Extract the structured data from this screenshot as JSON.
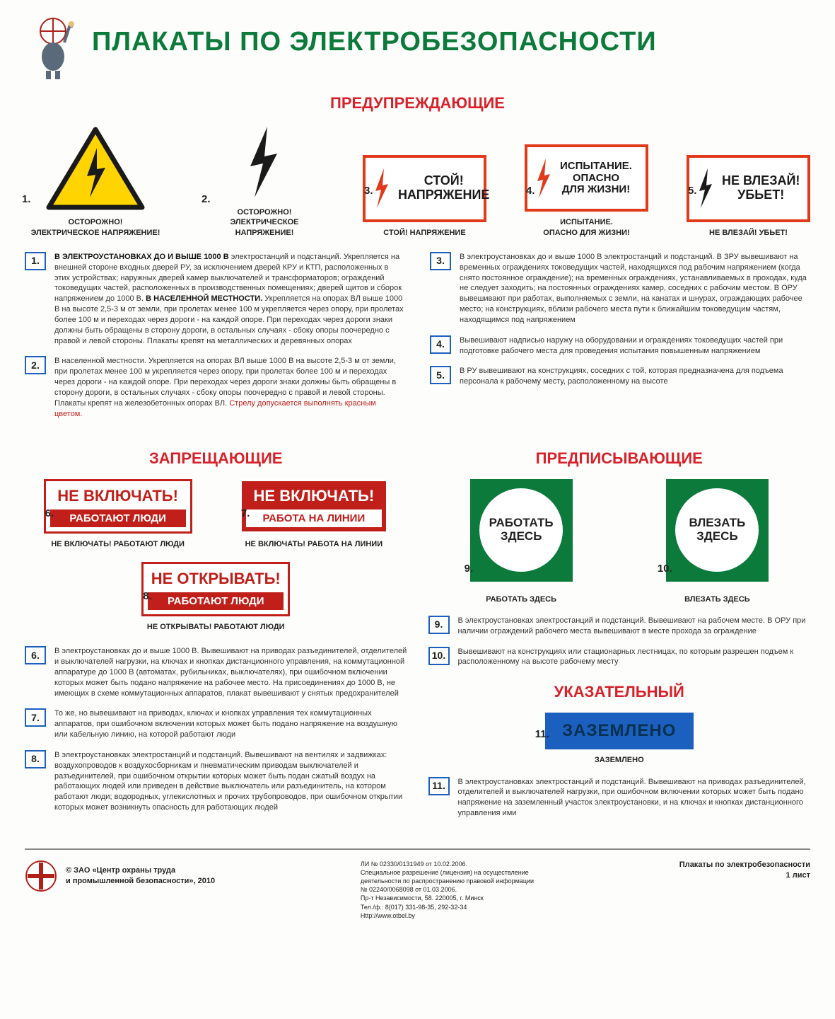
{
  "colors": {
    "green": "#0b7a3a",
    "red": "#d8212a",
    "red_sign": "#c02019",
    "orange_border": "#e13a1a",
    "blue": "#1b5fbf",
    "yellow": "#ffd400",
    "black": "#1a1a1a"
  },
  "title": "ПЛАКАТЫ ПО ЭЛЕКТРОБЕЗОПАСНОСТИ",
  "sections": {
    "warning": "ПРЕДУПРЕЖДАЮЩИЕ",
    "prohibit": "ЗАПРЕЩАЮЩИЕ",
    "prescribe": "ПРЕДПИСЫВАЮЩИЕ",
    "indicate": "УКАЗАТЕЛЬНЫЙ"
  },
  "warning_signs": [
    {
      "n": "1.",
      "caption": "ОСТОРОЖНО!\nЭЛЕКТРИЧЕСКОЕ НАПРЯЖЕНИЕ!"
    },
    {
      "n": "2.",
      "caption": "ОСТОРОЖНО!\nЭЛЕКТРИЧЕСКОЕ НАПРЯЖЕНИЕ!"
    },
    {
      "n": "3.",
      "sign_text": "СТОЙ!\nНАПРЯЖЕНИЕ",
      "caption": "СТОЙ! НАПРЯЖЕНИЕ"
    },
    {
      "n": "4.",
      "sign_text": "ИСПЫТАНИЕ.\nОПАСНО\nДЛЯ ЖИЗНИ!",
      "caption": "ИСПЫТАНИЕ.\nОПАСНО ДЛЯ ЖИЗНИ!"
    },
    {
      "n": "5.",
      "sign_text": "НЕ ВЛЕЗАЙ!\nУБЬЕТ!",
      "caption": "НЕ ВЛЕЗАЙ! УБЬЕТ!"
    }
  ],
  "warning_notes_left": [
    {
      "n": "1.",
      "text": "<b>В ЭЛЕКТРОУСТАНОВКАХ ДО И ВЫШЕ 1000 В</b> электростанций и подстанций. Укрепляется на внешней стороне входных дверей РУ, за исключением дверей КРУ и КТП, расположенных в этих устройствах; наружных дверей камер выключателей и трансформаторов; ограждений токоведущих частей, расположенных в производственных помещениях; дверей щитов и сборок напряжением до 1000 В. <b>В НАСЕЛЕННОЙ МЕСТНОСТИ.</b> Укрепляется на опорах ВЛ выше 1000 В на высоте 2,5-3 м от земли, при пролетах менее 100 м укрепляется через опору, при пролетах более 100 м и переходах через дороги - на каждой опоре. При переходах через дороги знаки должны быть обращены в сторону дороги, в остальных случаях - сбоку опоры поочередно с правой и левой стороны. Плакаты крепят на металлических и деревянных опорах"
    },
    {
      "n": "2.",
      "text": "В населенной местности. Укрепляется на опорах ВЛ выше 1000 В на высоте 2,5-3 м от земли, при пролетах менее 100 м укрепляется через опору, при пролетах более 100 м и переходах через дороги - на каждой опоре. При переходах через дороги знаки должны быть обращены в сторону дороги, в остальных случаях - сбоку опоры поочередно с правой и левой стороны. Плакаты крепят на железобетонных опорах ВЛ. <span class='red-note'>Стрелу допускается выполнять красным цветом.</span>"
    }
  ],
  "warning_notes_right": [
    {
      "n": "3.",
      "text": "В электроустановках до и выше 1000 В электростанций и подстанций. В ЗРУ вывешивают на временных ограждениях токоведущих частей, находящихся под рабочим напряжением (когда снято постоянное ограждение); на временных ограждениях, устанавливаемых в проходах, куда не следует заходить; на постоянных ограждениях камер, соседних с рабочим местом. В ОРУ вывешивают при работах, выполняемых с земли, на канатах и шнурах, ограждающих рабочее место; на конструкциях, вблизи рабочего места пути к ближайшим токоведущим частям, находящимся под напряжением"
    },
    {
      "n": "4.",
      "text": "Вывешивают надписью наружу на оборудовании и ограждениях токоведущих частей при подготовке рабочего места для проведения испытания повышенным напряжением"
    },
    {
      "n": "5.",
      "text": "В РУ вывешивают на конструкциях, соседних с той, которая предназначена для подъема персонала к рабочему месту, расположенному на высоте"
    }
  ],
  "prohibit_signs": [
    {
      "n": "6.",
      "top": "НЕ ВКЛЮЧАТЬ!",
      "bot": "РАБОТАЮТ ЛЮДИ",
      "caption": "НЕ ВКЛЮЧАТЬ! РАБОТАЮТ ЛЮДИ"
    },
    {
      "n": "7.",
      "top": "НЕ ВКЛЮЧАТЬ!",
      "bot": "РАБОТА НА ЛИНИИ",
      "caption": "НЕ ВКЛЮЧАТЬ! РАБОТА НА ЛИНИИ",
      "inverted": true
    },
    {
      "n": "8.",
      "top": "НЕ ОТКРЫВАТЬ!",
      "bot": "РАБОТАЮТ ЛЮДИ",
      "caption": "НЕ ОТКРЫВАТЬ! РАБОТАЮТ ЛЮДИ"
    }
  ],
  "prohibit_notes": [
    {
      "n": "6.",
      "text": "В электроустановках до и выше 1000 В. Вывешивают на приводах разъединителей, отделителей и выключателей нагрузки, на ключах и кнопках дистанционного управления, на коммутационной аппаратуре до 1000 В (автоматах, рубильниках, выключателях), при ошибочном включении которых может быть подано напряжение на рабочее место. На присоединениях до 1000 В, не имеющих в схеме коммутационных аппаратов, плакат вывешивают у снятых предохранителей"
    },
    {
      "n": "7.",
      "text": "То же, но вывешивают на приводах, ключах и кнопках управления тех коммутационных аппаратов, при ошибочном включении которых может быть подано напряжение на воздушную или кабельную линию, на которой работают люди"
    },
    {
      "n": "8.",
      "text": "В электроустановках электростанций и подстанций. Вывешивают на вентилях и задвижках: воздухопроводов к воздухосборникам и пневматическим приводам выключателей и разъединителей, при ошибочном открытии которых может быть подан сжатый воздух на работающих людей или приведен в действие выключатель или разъединитель, на котором работают люди; водородных, углекислотных и прочих трубопроводов, при ошибочном открытии которых может возникнуть опасность для работающих людей"
    }
  ],
  "prescribe_signs": [
    {
      "n": "9.",
      "text": "РАБОТАТЬ\nЗДЕСЬ",
      "caption": "РАБОТАТЬ ЗДЕСЬ"
    },
    {
      "n": "10.",
      "text": "ВЛЕЗАТЬ\nЗДЕСЬ",
      "caption": "ВЛЕЗАТЬ ЗДЕСЬ"
    }
  ],
  "prescribe_notes": [
    {
      "n": "9.",
      "text": "В электроустановках электростанций и подстанций. Вывешивают на рабочем месте. В ОРУ при наличии ограждений рабочего места вывешивают в месте прохода за ограждение"
    },
    {
      "n": "10.",
      "text": "Вывешивают на конструкциях или стационарных лестницах, по которым разрешен подъем к расположенному на высоте рабочему месту"
    }
  ],
  "indicate_sign": {
    "n": "11.",
    "text": "ЗАЗЕМЛЕНО",
    "caption": "ЗАЗЕМЛЕНО"
  },
  "indicate_notes": [
    {
      "n": "11.",
      "text": "В электроустановках электростанций и подстанций. Вывешивают на приводах разъединителей, отделителей и выключателей нагрузки, при ошибочном включении которых может быть подано напряжение на заземленный участок электроустановки, и на ключах и кнопках дистанционного управления ими"
    }
  ],
  "footer": {
    "credit": "© ЗАО «Центр охраны труда\nи промышленной безопасности», 2010",
    "license": "ЛИ № 02330/0131949 от 10.02.2006.\nСпециальное разрешение (лицензия) на осуществление\nдеятельности по распространению правовой информации\n№ 02240/0068098 от 01.03.2006.\nПр-т Независимости, 58. 220005, г. Минск\nТел./ф.: 8(017) 331-98-35, 292-32-34\nHttp://www.otbel.by",
    "right": "Плакаты по электробезопасности\n1 лист"
  }
}
